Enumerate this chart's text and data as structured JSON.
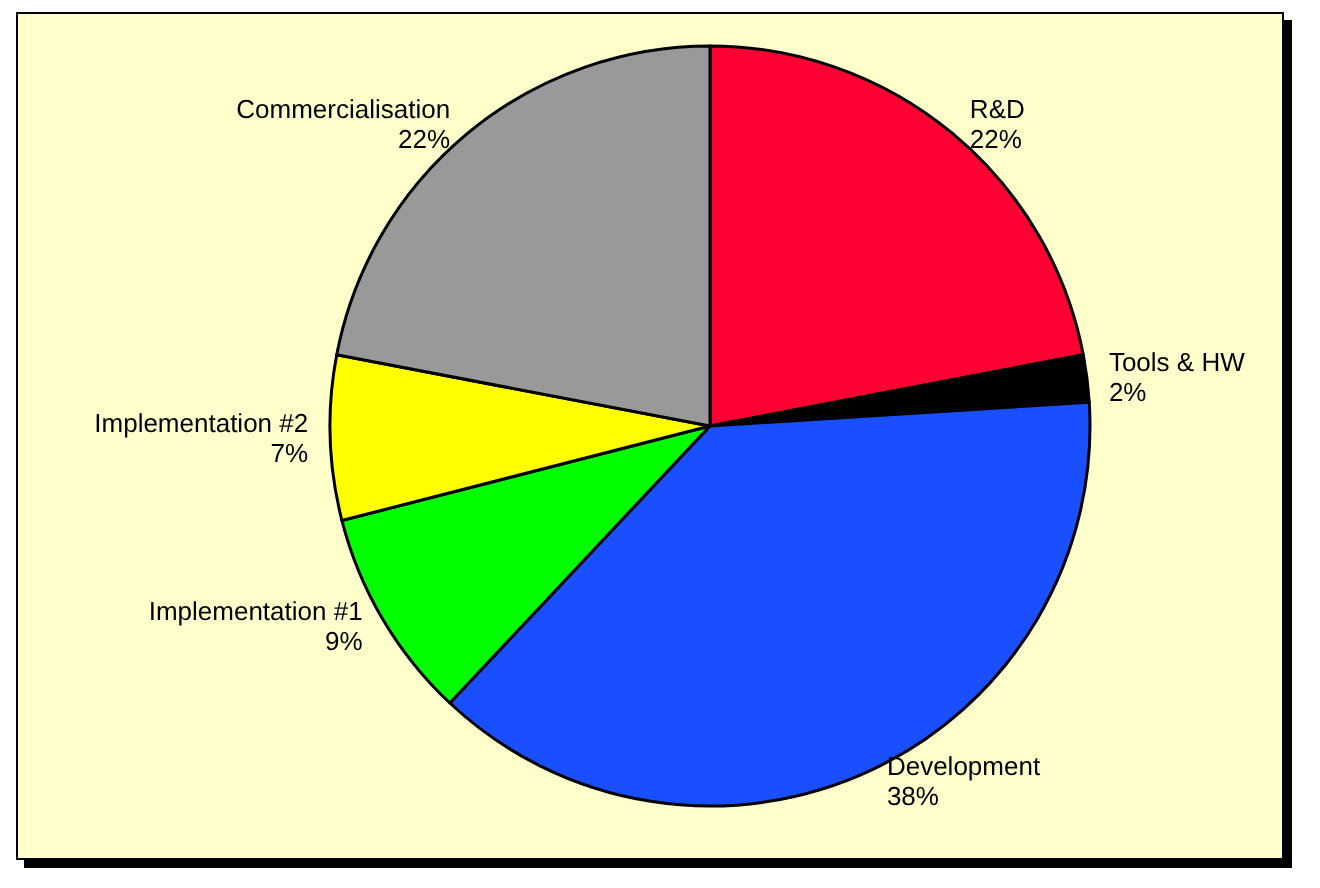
{
  "chart_data": {
    "type": "pie",
    "categories": [
      "R&D",
      "Tools & HW",
      "Development",
      "Implementation #1",
      "Implementation #2",
      "Commercialisation"
    ],
    "values": [
      22,
      2,
      38,
      9,
      7,
      22
    ],
    "colors": [
      "#ff0033",
      "#000000",
      "#1a4fff",
      "#00ff00",
      "#ffff00",
      "#999999"
    ],
    "value_labels": [
      "22%",
      "2%",
      "38%",
      "9%",
      "7%",
      "22%"
    ],
    "legend": false
  }
}
